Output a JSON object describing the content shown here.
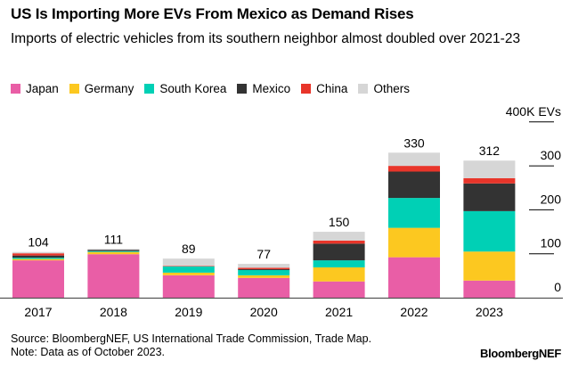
{
  "title": "US Is Importing More EVs From Mexico as Demand Rises",
  "subtitle": "Imports of electric vehicles from its southern neighbor almost doubled over 2021-23",
  "source": "Source: BloombergNEF, US International Trade Commission, Trade Map.",
  "note": "Note: Data as of October 2023.",
  "brand": "BloombergNEF",
  "chart_data": {
    "type": "bar",
    "stacked": true,
    "title": "US Is Importing More EVs From Mexico as Demand Rises",
    "ylabel": "400K EVs",
    "ylim": [
      0,
      400
    ],
    "yticks": [
      {
        "v": 0,
        "label": "0"
      },
      {
        "v": 100,
        "label": "100"
      },
      {
        "v": 200,
        "label": "200"
      },
      {
        "v": 300,
        "label": "300"
      },
      {
        "v": 400,
        "label": "400K EVs"
      }
    ],
    "legend_position": "top-left",
    "categories": [
      "2017",
      "2018",
      "2019",
      "2020",
      "2021",
      "2022",
      "2023"
    ],
    "totals": [
      "104",
      "111",
      "89",
      "77",
      "150",
      "330",
      "312"
    ],
    "series": [
      {
        "name": "Japan",
        "color": "#e95ea6",
        "values": [
          85,
          99,
          51,
          45,
          37,
          92,
          39
        ]
      },
      {
        "name": "Germany",
        "color": "#fcc820",
        "values": [
          3,
          5,
          6,
          6,
          32,
          67,
          66
        ]
      },
      {
        "name": "South Korea",
        "color": "#00d0b5",
        "values": [
          3,
          2,
          14,
          12,
          16,
          68,
          92
        ]
      },
      {
        "name": "Mexico",
        "color": "#333333",
        "values": [
          5,
          3,
          0,
          2,
          38,
          60,
          63
        ]
      },
      {
        "name": "China",
        "color": "#e8352a",
        "values": [
          5,
          0,
          1,
          3,
          7,
          13,
          12
        ]
      },
      {
        "name": "Others",
        "color": "#d6d6d6",
        "values": [
          3,
          2,
          17,
          9,
          20,
          30,
          40
        ]
      }
    ]
  }
}
